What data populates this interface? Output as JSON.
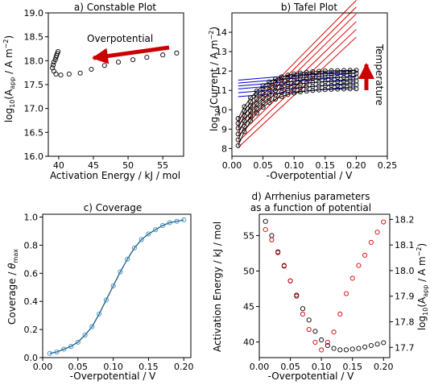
{
  "chart_data": [
    {
      "id": "constable",
      "type": "scatter",
      "title": "a) Constable Plot",
      "xlabel": "Activation Energy / kJ / mol",
      "ylabel_parts": [
        "log",
        "10",
        "(A",
        "app",
        " / A m",
        "−2",
        ")"
      ],
      "xlim": [
        38.5,
        58
      ],
      "ylim": [
        16.0,
        19.0
      ],
      "xticks": [
        40,
        45,
        50,
        55
      ],
      "yticks": [
        16.0,
        16.5,
        17.0,
        17.5,
        18.0,
        18.5,
        19.0
      ],
      "annotation": "Overpotential",
      "marker_color": "#000000",
      "x": [
        57.0,
        55.0,
        52.7,
        50.7,
        48.6,
        46.6,
        44.7,
        43.1,
        41.5,
        40.3,
        39.6,
        39.3,
        39.1,
        39.2,
        39.3,
        39.5,
        39.6,
        39.7,
        39.8,
        39.9
      ],
      "y": [
        18.16,
        18.12,
        18.07,
        18.02,
        17.97,
        17.9,
        17.82,
        17.74,
        17.72,
        17.7,
        17.72,
        17.78,
        17.85,
        17.91,
        17.97,
        18.02,
        18.07,
        18.11,
        18.15,
        18.19
      ]
    },
    {
      "id": "tafel",
      "type": "line",
      "title": "b) Tafel Plot",
      "xlabel": "-Overpotential / V",
      "ylabel_parts": [
        "log",
        "10",
        "(Current / A  m",
        "−2",
        ")"
      ],
      "xlim": [
        0,
        0.25
      ],
      "ylim": [
        7.6,
        15.0
      ],
      "xticks": [
        0.0,
        0.05,
        0.1,
        0.15,
        0.2,
        0.25
      ],
      "yticks": [
        8,
        9,
        10,
        11,
        12,
        13,
        14
      ],
      "annotation": "Temperature",
      "colors": {
        "data": "#000000",
        "high_potential_fit": "#0000cc",
        "low_potential_fit": "#dd0000",
        "arrow": "#cc0000"
      },
      "x": [
        0.01,
        0.02,
        0.03,
        0.04,
        0.05,
        0.06,
        0.07,
        0.08,
        0.09,
        0.1,
        0.11,
        0.12,
        0.13,
        0.14,
        0.15,
        0.16,
        0.17,
        0.18,
        0.19,
        0.2
      ],
      "series": [
        {
          "y0": 8.15,
          "sat": 11.1,
          "blue_int": 10.65,
          "red_int": 7.75,
          "red_slope": 30.0
        },
        {
          "y0": 8.45,
          "sat": 11.3,
          "blue_int": 10.85,
          "red_int": 8.05,
          "red_slope": 30.5
        },
        {
          "y0": 8.75,
          "sat": 11.5,
          "blue_int": 11.05,
          "red_int": 8.35,
          "red_slope": 31.0
        },
        {
          "y0": 9.05,
          "sat": 11.7,
          "blue_int": 11.2,
          "red_int": 8.65,
          "red_slope": 31.5
        },
        {
          "y0": 9.3,
          "sat": 11.9,
          "blue_int": 11.35,
          "red_int": 8.9,
          "red_slope": 32.0
        },
        {
          "y0": 9.55,
          "sat": 12.05,
          "blue_int": 11.5,
          "red_int": 9.15,
          "red_slope": 32.5
        }
      ]
    },
    {
      "id": "coverage",
      "type": "line",
      "title": "c) Coverage",
      "xlabel": "-Overpotential / V",
      "ylabel_parts": [
        "Coverage / ",
        "θ",
        "max"
      ],
      "xlim": [
        0.0,
        0.21
      ],
      "ylim": [
        0.0,
        1.02
      ],
      "xticks": [
        0.0,
        0.05,
        0.1,
        0.15,
        0.2
      ],
      "yticks": [
        0.0,
        0.2,
        0.4,
        0.6,
        0.8,
        1.0
      ],
      "line_color": "#1a5c80",
      "marker_color": "#3a8fc0",
      "x": [
        0.01,
        0.02,
        0.03,
        0.04,
        0.05,
        0.06,
        0.07,
        0.08,
        0.09,
        0.1,
        0.11,
        0.12,
        0.13,
        0.14,
        0.15,
        0.16,
        0.17,
        0.18,
        0.19,
        0.2
      ],
      "y": [
        0.03,
        0.04,
        0.06,
        0.08,
        0.11,
        0.16,
        0.22,
        0.31,
        0.41,
        0.51,
        0.61,
        0.7,
        0.78,
        0.84,
        0.88,
        0.91,
        0.94,
        0.96,
        0.97,
        0.98
      ]
    },
    {
      "id": "arrhenius",
      "type": "scatter",
      "title_lines": [
        "d) Arrhenius parameters",
        "as a function of potential"
      ],
      "xlabel": "-Overpotential / V",
      "ylabel": "Activation Energy / kJ / mol",
      "y2label_parts": [
        "log",
        "10",
        "(A",
        "app",
        " / A m",
        "−2",
        ")"
      ],
      "xlim": [
        0.0,
        0.21
      ],
      "ylim": [
        37.8,
        58.0
      ],
      "y2lim": [
        17.66,
        18.22
      ],
      "xticks": [
        0.0,
        0.05,
        0.1,
        0.15,
        0.2
      ],
      "yticks": [
        40,
        45,
        50,
        55
      ],
      "y2ticks": [
        17.7,
        17.8,
        17.9,
        18.0,
        18.1,
        18.2
      ],
      "colors": {
        "left": "#000000",
        "right": "#dd0000"
      },
      "x": [
        0.01,
        0.02,
        0.03,
        0.04,
        0.05,
        0.06,
        0.07,
        0.08,
        0.09,
        0.1,
        0.11,
        0.12,
        0.13,
        0.14,
        0.15,
        0.16,
        0.17,
        0.18,
        0.19,
        0.2
      ],
      "energy": [
        57.0,
        55.0,
        52.7,
        50.7,
        48.6,
        46.6,
        44.7,
        43.1,
        41.5,
        40.3,
        39.5,
        39.1,
        38.9,
        38.9,
        39.0,
        39.1,
        39.3,
        39.5,
        39.7,
        39.9
      ],
      "log_a": [
        18.16,
        18.12,
        18.07,
        18.02,
        17.96,
        17.9,
        17.83,
        17.77,
        17.72,
        17.69,
        17.72,
        17.76,
        17.83,
        17.91,
        17.97,
        18.02,
        18.06,
        18.11,
        18.15,
        18.19
      ]
    }
  ]
}
